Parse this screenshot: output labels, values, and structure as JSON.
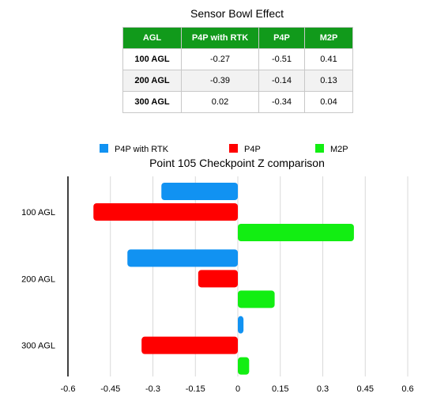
{
  "table": {
    "title": "Sensor Bowl Effect",
    "headers": [
      "AGL",
      "P4P with RTK",
      "P4P",
      "M2P"
    ],
    "rows": [
      {
        "label": "100 AGL",
        "values": [
          "-0.27",
          "-0.51",
          "0.41"
        ]
      },
      {
        "label": "200 AGL",
        "values": [
          "-0.39",
          "-0.14",
          "0.13"
        ]
      },
      {
        "label": "300 AGL",
        "values": [
          "0.02",
          "-0.34",
          "0.04"
        ]
      }
    ]
  },
  "chart_data": {
    "type": "bar",
    "orientation": "horizontal",
    "title": "Point 105 Checkpoint Z comparison",
    "categories": [
      "100 AGL",
      "200 AGL",
      "300 AGL"
    ],
    "series": [
      {
        "name": "P4P with RTK",
        "color": "#1192f2",
        "values": [
          -0.27,
          -0.39,
          0.02
        ]
      },
      {
        "name": "P4P",
        "color": "#ff0000",
        "values": [
          -0.51,
          -0.14,
          -0.34
        ]
      },
      {
        "name": "M2P",
        "color": "#12ee12",
        "values": [
          0.41,
          0.13,
          0.04
        ]
      }
    ],
    "xlim": [
      -0.6,
      0.6
    ],
    "xticks": [
      "-0.6",
      "-0.45",
      "-0.3",
      "-0.15",
      "0",
      "0.15",
      "0.3",
      "0.45",
      "0.6"
    ],
    "grid": "vertical",
    "legend": "top"
  }
}
